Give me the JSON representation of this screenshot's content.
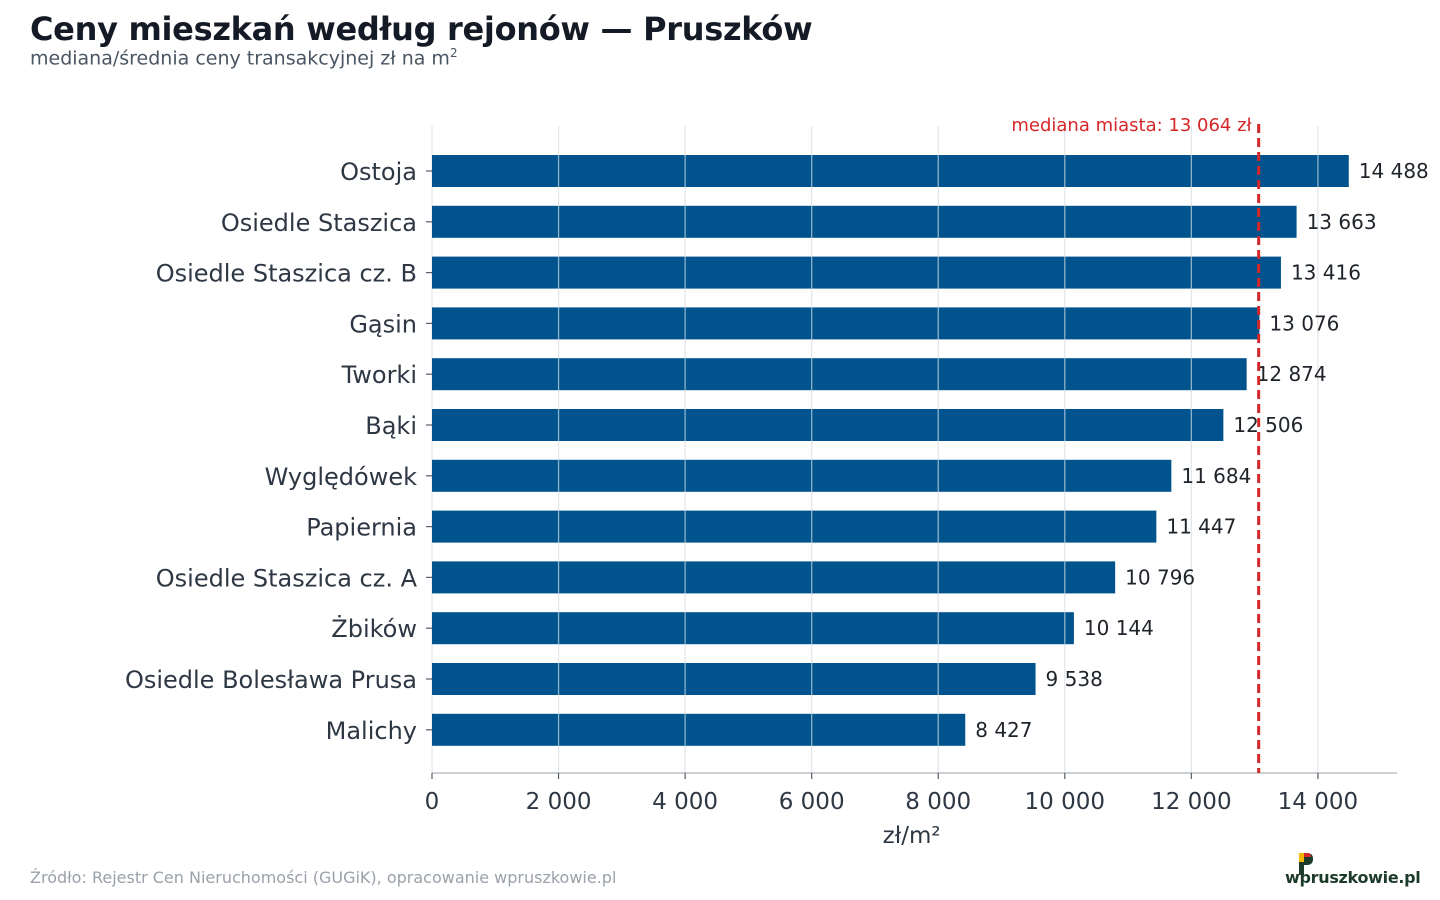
{
  "header": {
    "title": "Ceny mieszkań według rejonów — Pruszków",
    "subtitle": "mediana/średnia ceny transakcyjnej zł na m",
    "subtitle_sup": "2"
  },
  "chart_data": {
    "type": "bar",
    "orientation": "horizontal",
    "categories": [
      "Ostoja",
      "Osiedle Staszica",
      "Osiedle Staszica cz. B",
      "Gąsin",
      "Tworki",
      "Bąki",
      "Wyględówek",
      "Papiernia",
      "Osiedle Staszica cz. A",
      "Żbików",
      "Osiedle Bolesława Prusa",
      "Malichy"
    ],
    "values": [
      14488,
      13663,
      13416,
      13076,
      12874,
      12506,
      11684,
      11447,
      10796,
      10144,
      9538,
      8427
    ],
    "value_labels": [
      "14 488",
      "13 663",
      "13 416",
      "13 076",
      "12 874",
      "12 506",
      "11 684",
      "11 447",
      "10 796",
      "10 144",
      "9 538",
      "8 427"
    ],
    "xlabel": "zł/m²",
    "xlim": [
      0,
      15250
    ],
    "xticks": [
      0,
      2000,
      4000,
      6000,
      8000,
      10000,
      12000,
      14000
    ],
    "xtick_labels": [
      "0",
      "2 000",
      "4 000",
      "6 000",
      "8 000",
      "10 000",
      "12 000",
      "14 000"
    ],
    "grid": true,
    "reference_line": {
      "value": 13064,
      "label": "mediana miasta: 13 064 zł",
      "color": "#d62728",
      "style": "dashed"
    },
    "bar_color": "#00538c"
  },
  "footer": {
    "source": "Źródło: Rejestr Cen Nieruchomości (GUGiK), opracowanie wpruszkowie.pl",
    "logo_text": "wpruszkowie.pl"
  }
}
